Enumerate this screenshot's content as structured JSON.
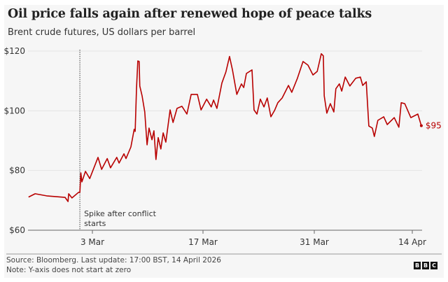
{
  "title": "Oil price falls again after renewed hope of peace talks",
  "subtitle": "Brent crude futures, US dollars per barrel",
  "source": "Source: Bloomberg. Last update: 17:00 BST, 14 April 2026",
  "note": "Note: Y-axis does not start at zero",
  "logo": [
    "B",
    "B",
    "C"
  ],
  "chart_data": {
    "type": "line",
    "title": "Oil price falls again after renewed hope of peace talks",
    "ylabel": "Brent crude futures, US dollars per barrel",
    "ylim": [
      60,
      120
    ],
    "yticks": [
      60,
      80,
      100,
      120
    ],
    "ytick_labels": [
      "$60",
      "$80",
      "$100",
      "$120"
    ],
    "xticks": [
      "2026-03-03",
      "2026-03-17",
      "2026-03-31",
      "2026-04-14"
    ],
    "xtick_labels": [
      "3 Mar",
      "17 Mar",
      "31 Mar",
      "14 Apr"
    ],
    "grid": true,
    "line_color": "#b80000",
    "end_label": "$95",
    "annotation": {
      "date": "2026-03-01T12:00",
      "text": [
        "Spike after conflict",
        "starts"
      ]
    },
    "series": [
      {
        "points": [
          [
            "2026-02-22T22:00",
            71.1
          ],
          [
            "2026-02-23T18:00",
            72.2
          ],
          [
            "2026-02-25T05:00",
            71.5
          ],
          [
            "2026-02-27T13:00",
            71.0
          ],
          [
            "2026-02-27T22:00",
            69.6
          ],
          [
            "2026-02-28T00:00",
            72.2
          ],
          [
            "2026-02-28T10:00",
            70.8
          ],
          [
            "2026-03-01T06:00",
            72.7
          ],
          [
            "2026-03-01T10:00",
            72.7
          ],
          [
            "2026-03-01T13:00",
            79.2
          ],
          [
            "2026-03-01T16:00",
            76.2
          ],
          [
            "2026-03-02T03:00",
            79.7
          ],
          [
            "2026-03-02T16:00",
            77.3
          ],
          [
            "2026-03-03T17:00",
            84.4
          ],
          [
            "2026-03-04T04:00",
            80.4
          ],
          [
            "2026-03-04T21:00",
            84.0
          ],
          [
            "2026-03-05T07:00",
            80.9
          ],
          [
            "2026-03-06T02:00",
            84.4
          ],
          [
            "2026-03-06T09:00",
            82.5
          ],
          [
            "2026-03-07T00:00",
            85.6
          ],
          [
            "2026-03-07T06:00",
            84.0
          ],
          [
            "2026-03-07T21:00",
            87.9
          ],
          [
            "2026-03-08T07:00",
            93.8
          ],
          [
            "2026-03-08T10:00",
            93.1
          ],
          [
            "2026-03-08T14:00",
            107.4
          ],
          [
            "2026-03-08T18:00",
            116.7
          ],
          [
            "2026-03-08T22:00",
            116.5
          ],
          [
            "2026-03-09T00:00",
            108.3
          ],
          [
            "2026-03-09T07:00",
            105.0
          ],
          [
            "2026-03-09T15:00",
            99.6
          ],
          [
            "2026-03-09T22:00",
            88.6
          ],
          [
            "2026-03-10T04:00",
            94.2
          ],
          [
            "2026-03-10T13:00",
            90.3
          ],
          [
            "2026-03-10T19:00",
            93.3
          ],
          [
            "2026-03-11T01:00",
            83.7
          ],
          [
            "2026-03-11T08:00",
            91.0
          ],
          [
            "2026-03-11T16:00",
            87.2
          ],
          [
            "2026-03-11T23:00",
            92.6
          ],
          [
            "2026-03-12T07:00",
            89.5
          ],
          [
            "2026-03-12T20:00",
            100.3
          ],
          [
            "2026-03-13T05:00",
            96.1
          ],
          [
            "2026-03-13T17:00",
            100.8
          ],
          [
            "2026-03-14T08:00",
            101.5
          ],
          [
            "2026-03-14T23:00",
            98.9
          ],
          [
            "2026-03-15T12:00",
            105.5
          ],
          [
            "2026-03-16T07:00",
            105.5
          ],
          [
            "2026-03-16T18:00",
            100.3
          ],
          [
            "2026-03-17T11:00",
            103.9
          ],
          [
            "2026-03-18T01:00",
            101.3
          ],
          [
            "2026-03-18T08:00",
            103.6
          ],
          [
            "2026-03-18T18:00",
            100.8
          ],
          [
            "2026-03-19T09:00",
            109.3
          ],
          [
            "2026-03-19T21:00",
            113.0
          ],
          [
            "2026-03-20T08:00",
            118.2
          ],
          [
            "2026-03-20T17:00",
            113.7
          ],
          [
            "2026-03-21T06:00",
            105.5
          ],
          [
            "2026-03-21T20:00",
            109.0
          ],
          [
            "2026-03-22T03:00",
            107.8
          ],
          [
            "2026-03-22T11:00",
            112.5
          ],
          [
            "2026-03-23T04:00",
            113.7
          ],
          [
            "2026-03-23T10:00",
            100.3
          ],
          [
            "2026-03-23T19:00",
            98.9
          ],
          [
            "2026-03-24T05:00",
            103.9
          ],
          [
            "2026-03-24T16:00",
            101.3
          ],
          [
            "2026-03-25T02:00",
            104.3
          ],
          [
            "2026-03-25T13:00",
            98.0
          ],
          [
            "2026-03-26T00:00",
            100.1
          ],
          [
            "2026-03-26T10:00",
            102.7
          ],
          [
            "2026-03-26T23:00",
            104.3
          ],
          [
            "2026-03-27T18:00",
            108.5
          ],
          [
            "2026-03-28T04:00",
            106.2
          ],
          [
            "2026-03-28T21:00",
            110.9
          ],
          [
            "2026-03-29T14:00",
            116.5
          ],
          [
            "2026-03-30T05:00",
            115.3
          ],
          [
            "2026-03-30T20:00",
            112.0
          ],
          [
            "2026-03-31T10:00",
            113.2
          ],
          [
            "2026-04-01T00:00",
            119.1
          ],
          [
            "2026-04-01T07:00",
            118.4
          ],
          [
            "2026-04-01T10:00",
            105.0
          ],
          [
            "2026-04-01T19:00",
            99.2
          ],
          [
            "2026-04-02T07:00",
            102.4
          ],
          [
            "2026-04-02T19:00",
            99.6
          ],
          [
            "2026-04-03T02:00",
            107.4
          ],
          [
            "2026-04-03T14:00",
            109.0
          ],
          [
            "2026-04-03T22:00",
            106.6
          ],
          [
            "2026-04-04T10:00",
            111.3
          ],
          [
            "2026-04-05T02:00",
            108.3
          ],
          [
            "2026-04-05T22:00",
            110.9
          ],
          [
            "2026-04-06T14:00",
            111.3
          ],
          [
            "2026-04-06T22:00",
            108.5
          ],
          [
            "2026-04-07T10:00",
            109.7
          ],
          [
            "2026-04-07T19:00",
            94.9
          ],
          [
            "2026-04-08T07:00",
            94.2
          ],
          [
            "2026-04-08T14:00",
            91.4
          ],
          [
            "2026-04-09T02:00",
            96.8
          ],
          [
            "2026-04-09T22:00",
            98.0
          ],
          [
            "2026-04-10T10:00",
            95.4
          ],
          [
            "2026-04-11T10:00",
            97.7
          ],
          [
            "2026-04-12T02:00",
            94.5
          ],
          [
            "2026-04-12T10:00",
            102.7
          ],
          [
            "2026-04-12T22:00",
            102.4
          ],
          [
            "2026-04-13T19:00",
            97.7
          ],
          [
            "2026-04-14T19:00",
            98.9
          ],
          [
            "2026-04-15T07:00",
            95.0
          ]
        ]
      }
    ]
  }
}
